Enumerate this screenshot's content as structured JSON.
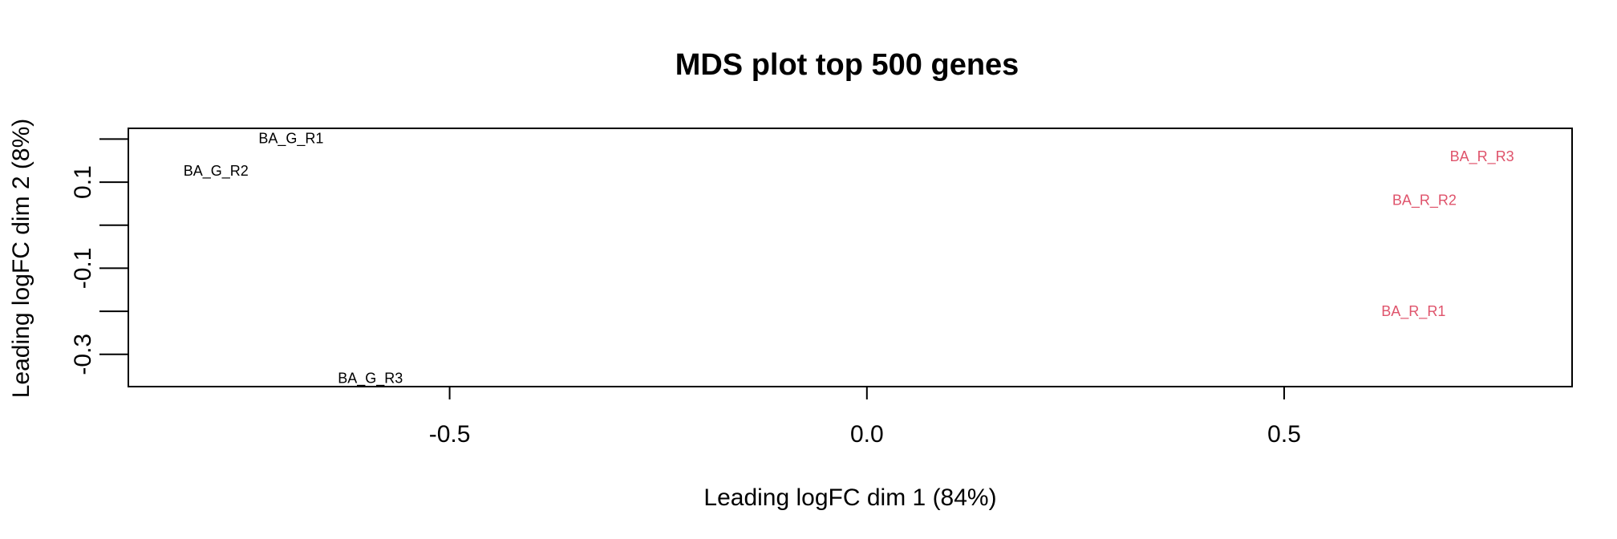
{
  "chart_data": {
    "type": "scatter",
    "title": "MDS plot top 500 genes",
    "xlabel": "Leading logFC dim 1 (84%)",
    "ylabel": "Leading logFC dim 2 (8%)",
    "xlim": [
      -0.885,
      0.845
    ],
    "ylim": [
      -0.375,
      0.225
    ],
    "x_ticks": [
      -0.5,
      0.0,
      0.5
    ],
    "x_tick_labels": [
      "-0.5",
      "0.0",
      "0.5"
    ],
    "y_ticks": [
      -0.3,
      -0.2,
      -0.1,
      0.0,
      0.1,
      0.2
    ],
    "y_tick_labels": [
      "-0.3",
      "",
      "-0.1",
      "",
      "0.1",
      ""
    ],
    "grid": false,
    "legend": "none",
    "points": [
      {
        "label": "BA_G_R1",
        "x": -0.69,
        "y": 0.202,
        "color": "#000000"
      },
      {
        "label": "BA_G_R2",
        "x": -0.78,
        "y": 0.126,
        "color": "#000000"
      },
      {
        "label": "BA_G_R3",
        "x": -0.595,
        "y": -0.355,
        "color": "#000000"
      },
      {
        "label": "BA_R_R1",
        "x": 0.655,
        "y": -0.2,
        "color": "#DF536B"
      },
      {
        "label": "BA_R_R2",
        "x": 0.668,
        "y": 0.058,
        "color": "#DF536B"
      },
      {
        "label": "BA_R_R3",
        "x": 0.737,
        "y": 0.16,
        "color": "#DF536B"
      }
    ]
  }
}
